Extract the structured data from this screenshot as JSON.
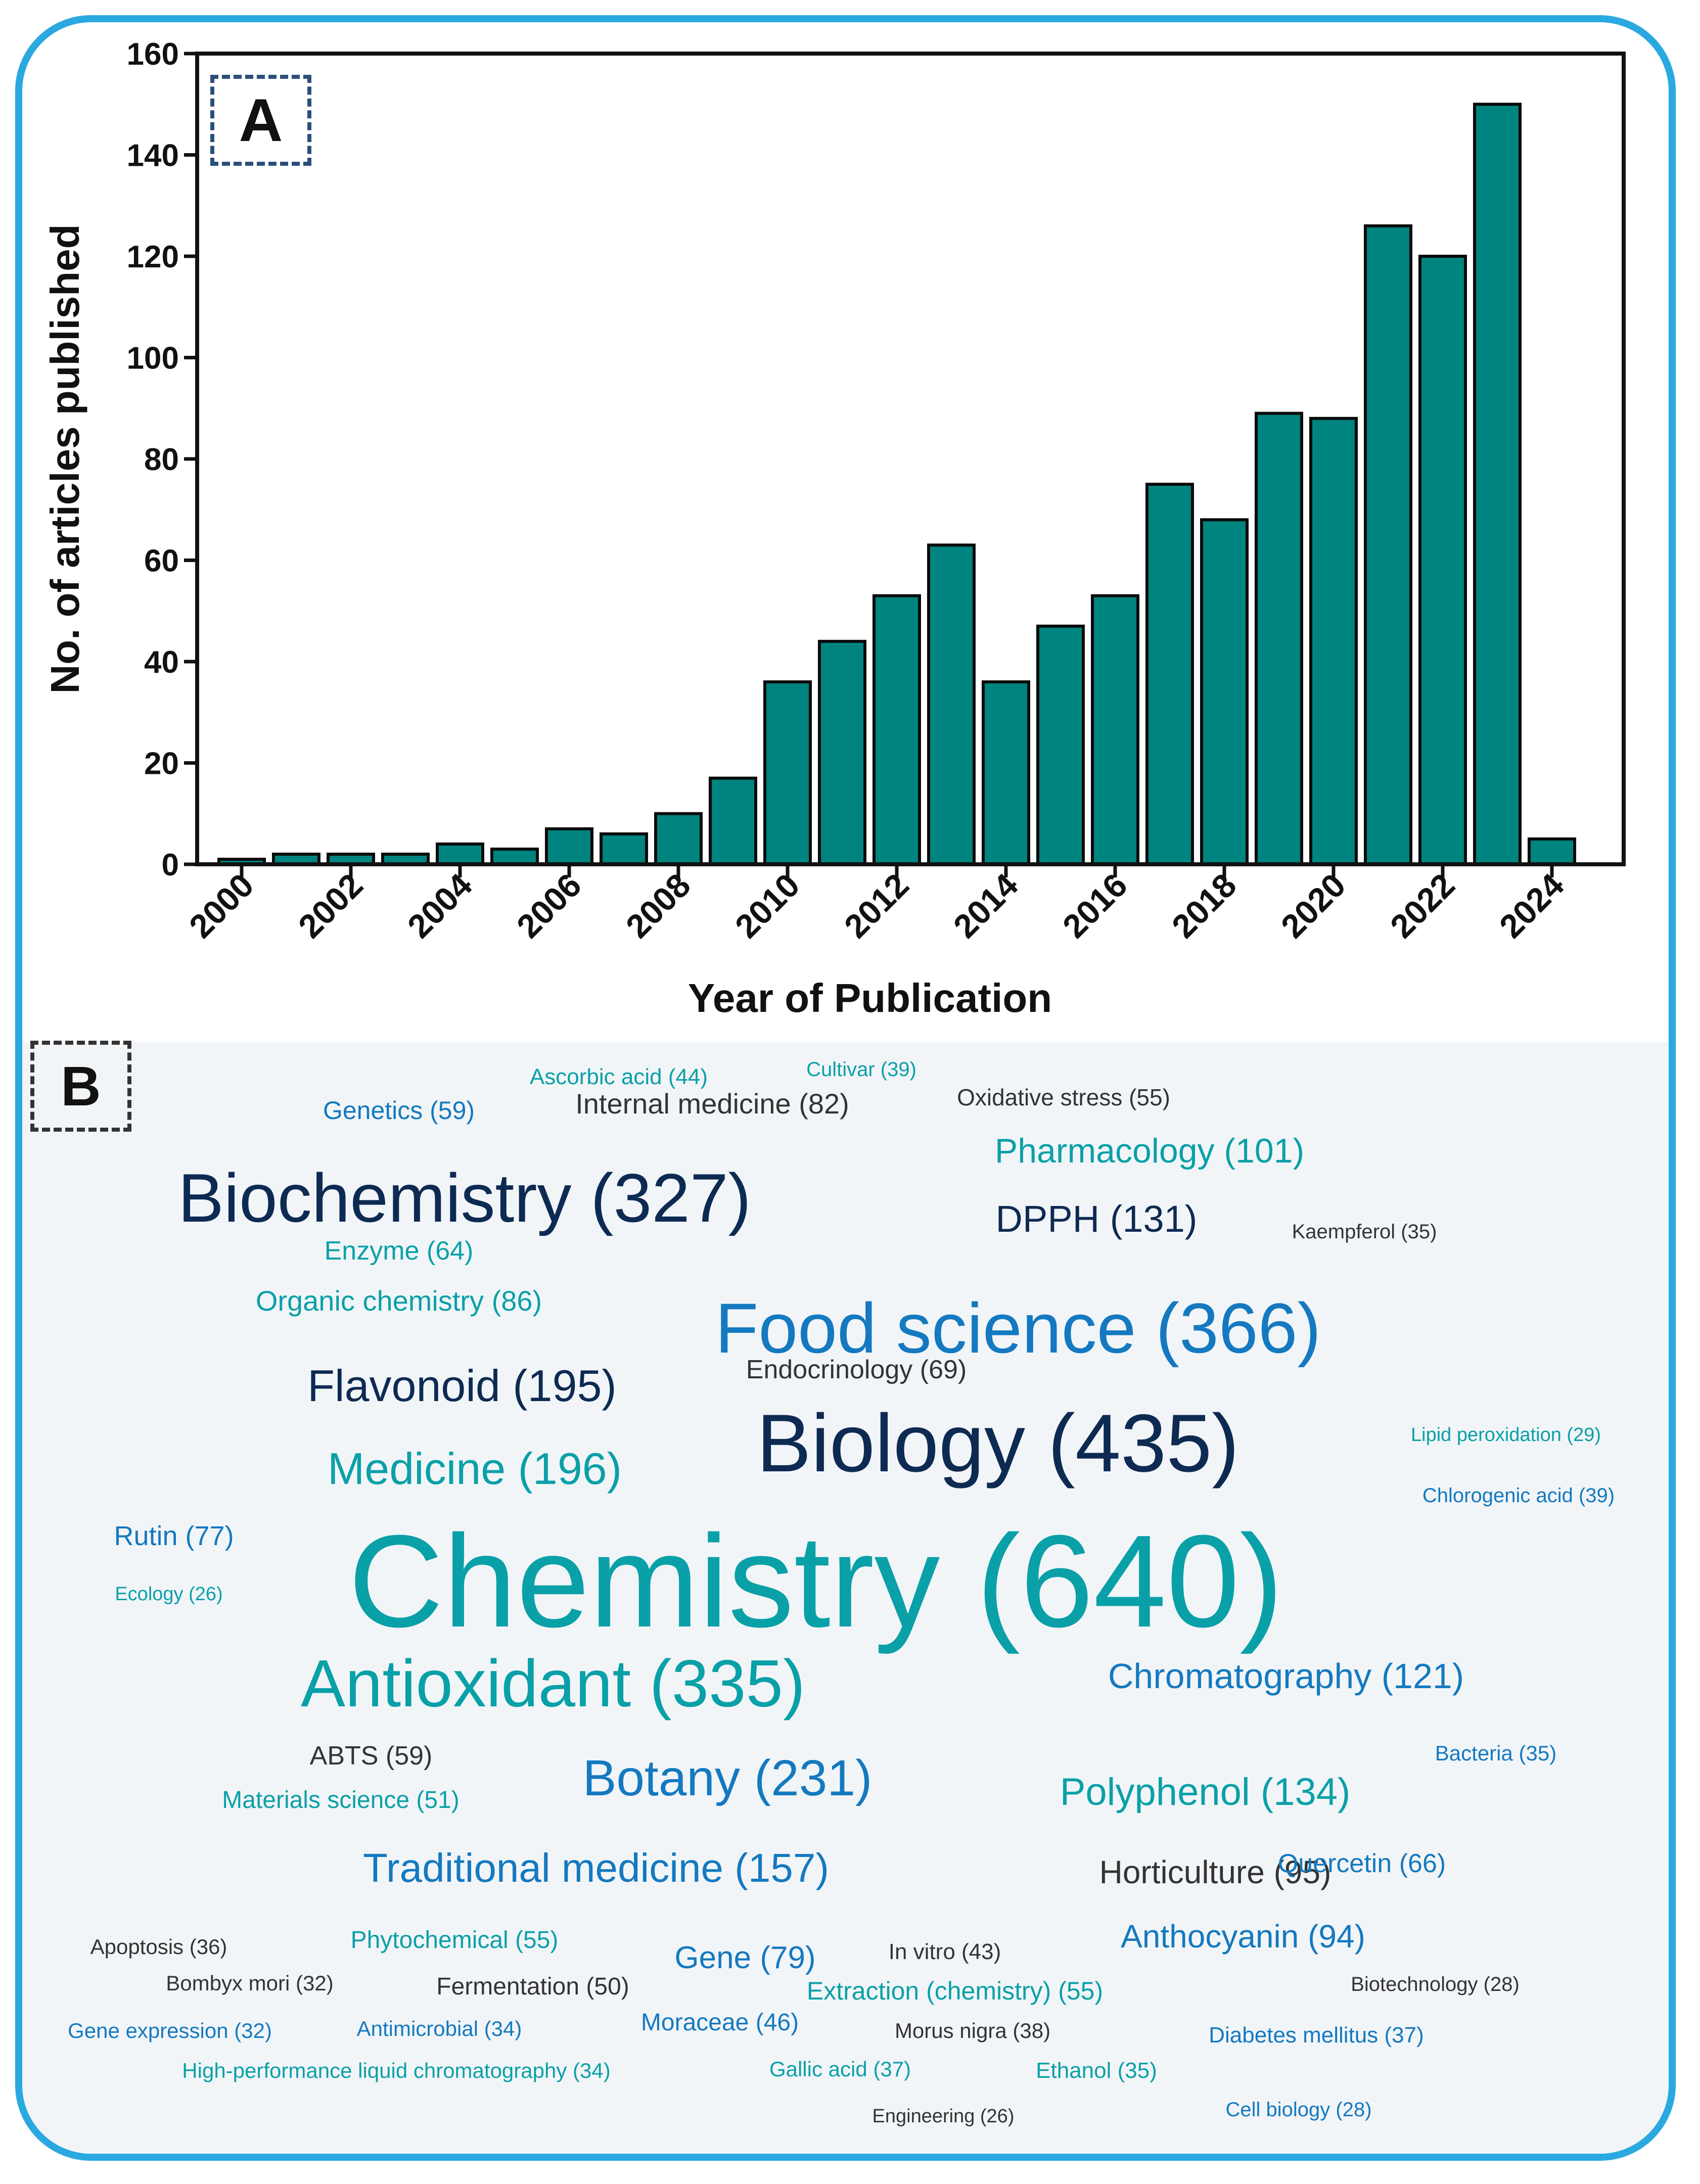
{
  "chart_data": {
    "type": "bar",
    "panel_label": "A",
    "xlabel": "Year of Publication",
    "ylabel": "No. of articles published",
    "ylim": [
      0,
      160
    ],
    "yticks": [
      0,
      20,
      40,
      60,
      80,
      100,
      120,
      140,
      160
    ],
    "categories": [
      "2000",
      "2001",
      "2002",
      "2003",
      "2004",
      "2005",
      "2006",
      "2007",
      "2008",
      "2009",
      "2010",
      "2011",
      "2012",
      "2013",
      "2014",
      "2015",
      "2016",
      "2017",
      "2018",
      "2019",
      "2020",
      "2021",
      "2022",
      "2023",
      "2024"
    ],
    "xtick_labels": [
      "2000",
      "2002",
      "2004",
      "2006",
      "2008",
      "2010",
      "2012",
      "2014",
      "2016",
      "2018",
      "2020",
      "2022",
      "2024"
    ],
    "values": [
      1,
      2,
      2,
      2,
      4,
      3,
      7,
      6,
      10,
      17,
      36,
      44,
      53,
      63,
      36,
      47,
      53,
      75,
      68,
      89,
      88,
      126,
      120,
      150,
      5
    ],
    "bar_color": "#00847f",
    "grid": false
  },
  "word_cloud": {
    "panel_label": "B",
    "colors": {
      "dark": "#0d2a52",
      "teal": "#0aa0a8",
      "blue": "#1479c0",
      "gray": "#333333"
    },
    "words": [
      {
        "text": "Ascorbic acid (44)",
        "color": "teal"
      },
      {
        "text": "Cultivar (39)",
        "color": "teal"
      },
      {
        "text": "Genetics (59)",
        "color": "blue"
      },
      {
        "text": "Internal medicine (82)",
        "color": "gray"
      },
      {
        "text": "Oxidative stress (55)",
        "color": "gray"
      },
      {
        "text": "Pharmacology (101)",
        "color": "teal"
      },
      {
        "text": "Biochemistry (327)",
        "color": "dark"
      },
      {
        "text": "DPPH (131)",
        "color": "dark"
      },
      {
        "text": "Kaempferol (35)",
        "color": "gray"
      },
      {
        "text": "Enzyme (64)",
        "color": "teal"
      },
      {
        "text": "Organic chemistry (86)",
        "color": "teal"
      },
      {
        "text": "Food science (366)",
        "color": "blue"
      },
      {
        "text": "Flavonoid (195)",
        "color": "dark"
      },
      {
        "text": "Endocrinology (69)",
        "color": "gray"
      },
      {
        "text": "Lipid peroxidation (29)",
        "color": "teal"
      },
      {
        "text": "Biology (435)",
        "color": "dark"
      },
      {
        "text": "Medicine (196)",
        "color": "teal"
      },
      {
        "text": "Chlorogenic acid (39)",
        "color": "blue"
      },
      {
        "text": "Rutin (77)",
        "color": "blue"
      },
      {
        "text": "Chemistry (640)",
        "color": "teal"
      },
      {
        "text": "Ecology (26)",
        "color": "teal"
      },
      {
        "text": "Antioxidant (335)",
        "color": "teal"
      },
      {
        "text": "Chromatography (121)",
        "color": "blue"
      },
      {
        "text": "ABTS (59)",
        "color": "gray"
      },
      {
        "text": "Bacteria (35)",
        "color": "blue"
      },
      {
        "text": "Botany (231)",
        "color": "blue"
      },
      {
        "text": "Polyphenol (134)",
        "color": "teal"
      },
      {
        "text": "Materials science (51)",
        "color": "teal"
      },
      {
        "text": "Traditional medicine (157)",
        "color": "blue"
      },
      {
        "text": "Horticulture (95)",
        "color": "gray"
      },
      {
        "text": "Quercetin (66)",
        "color": "blue"
      },
      {
        "text": "Apoptosis (36)",
        "color": "gray"
      },
      {
        "text": "Phytochemical (55)",
        "color": "teal"
      },
      {
        "text": "Gene (79)",
        "color": "blue"
      },
      {
        "text": "In vitro (43)",
        "color": "gray"
      },
      {
        "text": "Anthocyanin (94)",
        "color": "blue"
      },
      {
        "text": "Bombyx mori (32)",
        "color": "gray"
      },
      {
        "text": "Fermentation (50)",
        "color": "gray"
      },
      {
        "text": "Extraction (chemistry) (55)",
        "color": "teal"
      },
      {
        "text": "Biotechnology (28)",
        "color": "gray"
      },
      {
        "text": "Gene expression (32)",
        "color": "blue"
      },
      {
        "text": "Antimicrobial (34)",
        "color": "blue"
      },
      {
        "text": "Moraceae (46)",
        "color": "blue"
      },
      {
        "text": "Morus nigra (38)",
        "color": "gray"
      },
      {
        "text": "Diabetes mellitus (37)",
        "color": "blue"
      },
      {
        "text": "High-performance liquid chromatography (34)",
        "color": "teal"
      },
      {
        "text": "Gallic acid (37)",
        "color": "teal"
      },
      {
        "text": "Ethanol (35)",
        "color": "teal"
      },
      {
        "text": "Engineering (26)",
        "color": "gray"
      },
      {
        "text": "Cell biology (28)",
        "color": "blue"
      }
    ]
  }
}
